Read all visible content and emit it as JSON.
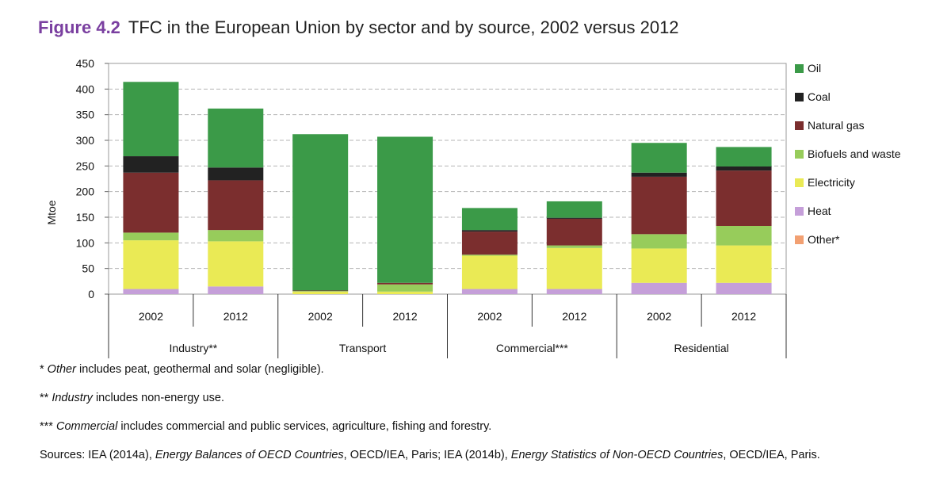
{
  "figure": {
    "number": "Figure 4.2",
    "title": "TFC in the European Union by sector and by source, 2002 versus 2012"
  },
  "chart_data": {
    "type": "bar",
    "stacked": true,
    "ylabel": "Mtoe",
    "ylim": [
      0,
      450
    ],
    "yticks": [
      0,
      50,
      100,
      150,
      200,
      250,
      300,
      350,
      400,
      450
    ],
    "grid": true,
    "legend_position": "right",
    "groups": [
      {
        "label": "Industry**",
        "categories": [
          "2002",
          "2012"
        ]
      },
      {
        "label": "Transport",
        "categories": [
          "2002",
          "2012"
        ]
      },
      {
        "label": "Commercial***",
        "categories": [
          "2002",
          "2012"
        ]
      },
      {
        "label": "Residential",
        "categories": [
          "2002",
          "2012"
        ]
      }
    ],
    "categories": [
      "2002",
      "2012",
      "2002",
      "2012",
      "2002",
      "2012",
      "2002",
      "2012"
    ],
    "series": [
      {
        "name": "Heat",
        "color": "#c59fd9",
        "values": [
          10,
          15,
          0,
          0,
          10,
          10,
          22,
          22
        ]
      },
      {
        "name": "Electricity",
        "color": "#eaea55",
        "values": [
          95,
          88,
          5,
          5,
          65,
          80,
          67,
          73
        ]
      },
      {
        "name": "Biofuels and waste",
        "color": "#97cc5b",
        "values": [
          15,
          22,
          1,
          14,
          2,
          5,
          28,
          38
        ]
      },
      {
        "name": "Natural gas",
        "color": "#7b2e2e",
        "values": [
          117,
          97,
          1,
          3,
          45,
          52,
          112,
          108
        ]
      },
      {
        "name": "Coal",
        "color": "#222222",
        "values": [
          32,
          25,
          0,
          0,
          3,
          2,
          8,
          8
        ]
      },
      {
        "name": "Oil",
        "color": "#3b9a48",
        "values": [
          145,
          115,
          305,
          285,
          43,
          32,
          58,
          38
        ]
      },
      {
        "name": "Other*",
        "color": "#f2a072",
        "values": [
          0,
          0,
          0,
          0,
          0,
          0,
          0,
          0
        ]
      }
    ],
    "legend_order": [
      "Oil",
      "Coal",
      "Natural gas",
      "Biofuels and waste",
      "Electricity",
      "Heat",
      "Other*"
    ]
  },
  "notes": [
    {
      "pre": "* ",
      "em": "Other",
      "post": " includes peat, geothermal and solar (negligible)."
    },
    {
      "pre": "** ",
      "em": "Industry",
      "post": " includes non-energy use."
    },
    {
      "pre": "*** ",
      "em": "Commercial",
      "post": " includes commercial and public services, agriculture, fishing and forestry."
    }
  ],
  "sources": {
    "prefix": "Sources: IEA (2014a), ",
    "em1": "Energy Balances of OECD Countries",
    "mid": ", OECD/IEA, Paris; IEA (2014b), ",
    "em2": "Energy Statistics of Non-OECD Countries",
    "suffix": ", OECD/IEA, Paris."
  }
}
